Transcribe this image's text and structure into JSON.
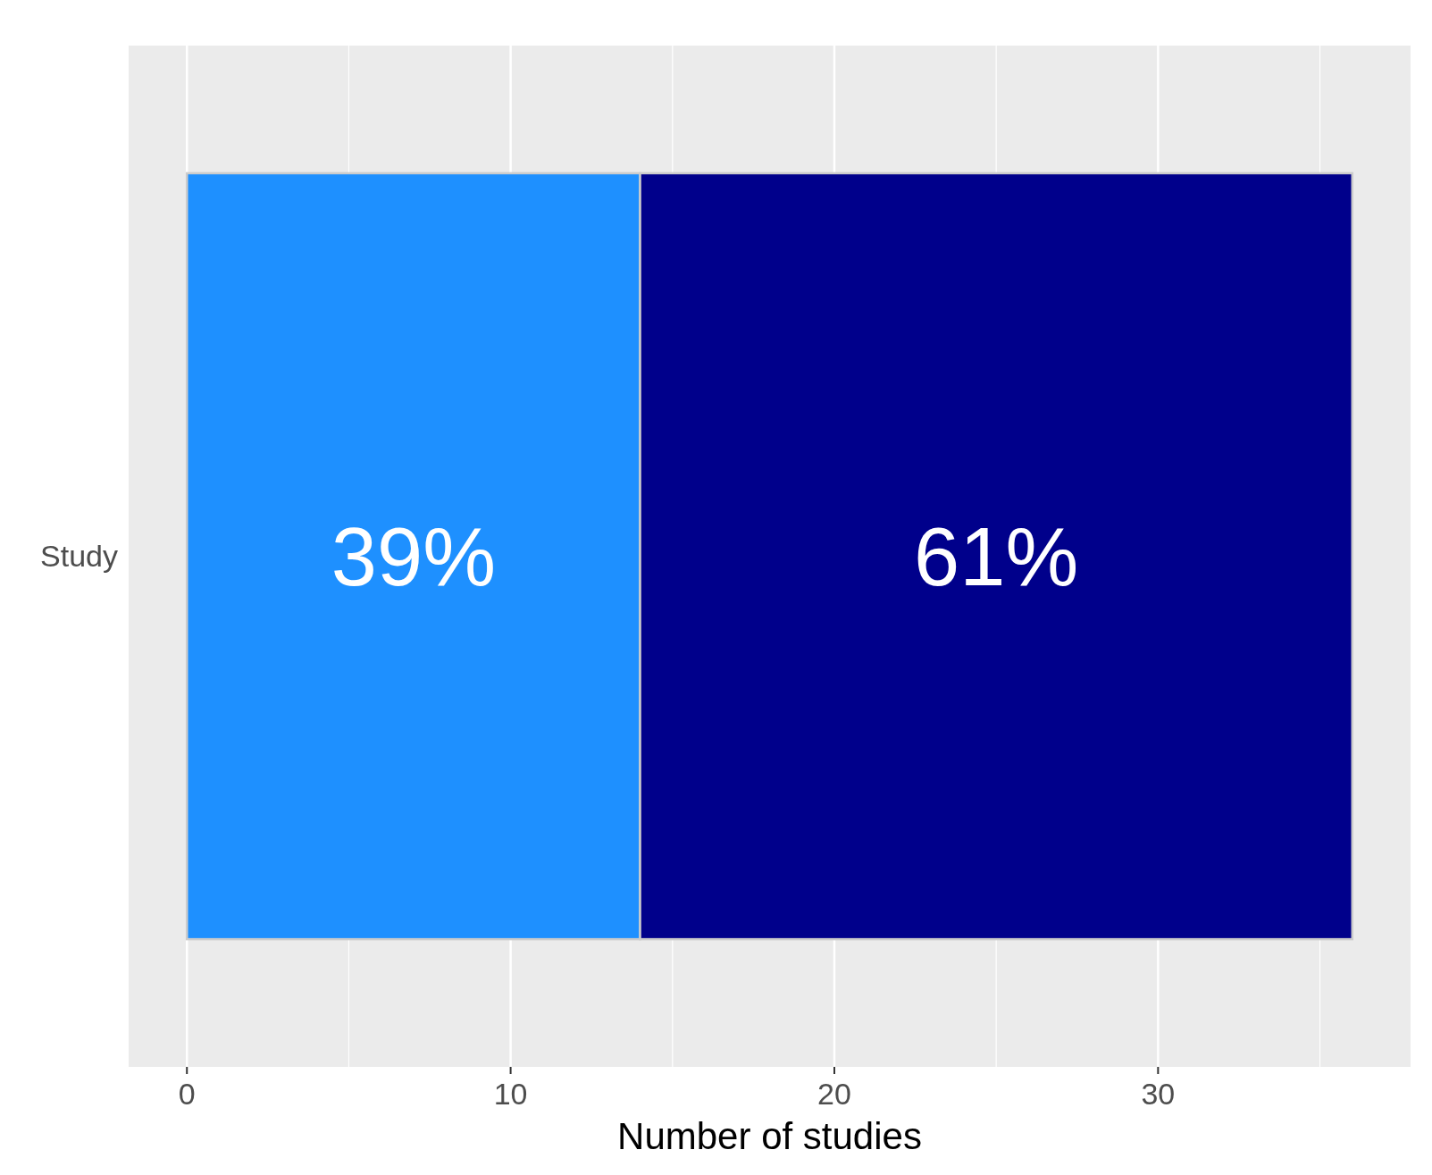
{
  "chart_data": {
    "type": "bar",
    "orientation": "horizontal",
    "stacked": true,
    "xlabel": "Number of studies",
    "categories": [
      "Study"
    ],
    "series": [
      {
        "color": "#1e90ff",
        "values": [
          14
        ]
      },
      {
        "color": "#00008b",
        "values": [
          22
        ]
      }
    ],
    "annotations": [
      "39%",
      "61%"
    ],
    "xlim": [
      -1.8,
      37.8
    ],
    "xticks": [
      0,
      {
        "value": 5,
        "label": null
      },
      10,
      {
        "value": 15,
        "label": null
      },
      20,
      {
        "value": 25,
        "label": null
      },
      30,
      {
        "value": 35,
        "label": null
      }
    ],
    "grid": "x"
  }
}
